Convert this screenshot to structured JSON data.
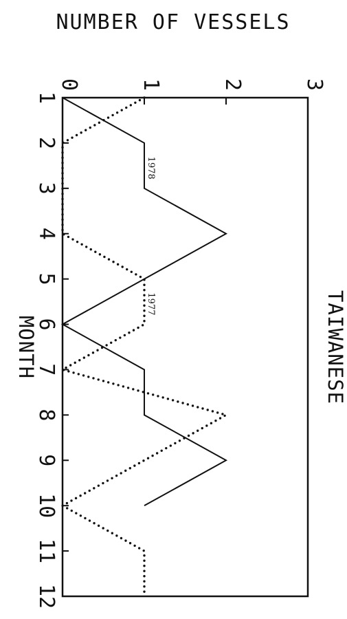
{
  "chart_data": {
    "type": "line",
    "title": "TAIWANESE",
    "ylabel": "NUMBER OF VESSELS",
    "xlabel": "MONTH",
    "x": [
      1,
      2,
      3,
      4,
      5,
      6,
      7,
      8,
      9,
      10,
      11,
      12
    ],
    "x_tick_labels": [
      "1",
      "2",
      "3",
      "4",
      "5",
      "6",
      "7",
      "8",
      "9",
      "10",
      "11",
      "12"
    ],
    "y_tick_labels": [
      "0",
      "1",
      "2",
      "3"
    ],
    "xlim": [
      1,
      12
    ],
    "ylim": [
      0,
      3
    ],
    "orientation": "rotated 90 degrees clockwise",
    "grid": false,
    "series": [
      {
        "name": "1978",
        "line_style": "solid",
        "x": [
          1,
          2,
          3,
          4,
          5,
          6,
          7,
          8,
          9,
          10
        ],
        "values": [
          0,
          1,
          1,
          2,
          1,
          0,
          1,
          1,
          2,
          1
        ]
      },
      {
        "name": "1977",
        "line_style": "dotted",
        "x": [
          1,
          2,
          3,
          4,
          5,
          6,
          7,
          8,
          9,
          10,
          11,
          12
        ],
        "values": [
          1,
          0,
          0,
          0,
          1,
          1,
          0,
          2,
          1,
          0,
          1,
          1
        ]
      }
    ]
  }
}
